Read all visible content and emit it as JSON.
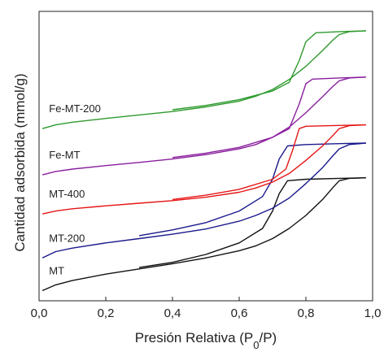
{
  "chart_data": {
    "type": "line",
    "title": "",
    "xlabel": "Presión Relativa (P",
    "xlabel_sub": "0",
    "xlabel_end": "/P)",
    "ylabel": "Cantidad adsorbida (mmol/g)",
    "xlim": [
      0.0,
      1.0
    ],
    "ylim": [
      0,
      100
    ],
    "x_ticks": [
      "0,0",
      "0,2",
      "0,4",
      "0,6",
      "0,8",
      "1,0"
    ],
    "y_ticks_labeled": false,
    "grid": false,
    "legend": "inline labels at left",
    "series": [
      {
        "name": "MT",
        "color": "#111111",
        "adsorption": [
          [
            0.01,
            3.5
          ],
          [
            0.05,
            5.5
          ],
          [
            0.1,
            7.0
          ],
          [
            0.2,
            9.2
          ],
          [
            0.3,
            11.0
          ],
          [
            0.4,
            12.8
          ],
          [
            0.5,
            14.8
          ],
          [
            0.6,
            17.3
          ],
          [
            0.65,
            19.0
          ],
          [
            0.7,
            21.5
          ],
          [
            0.75,
            25.0
          ],
          [
            0.8,
            29.5
          ],
          [
            0.85,
            35.0
          ],
          [
            0.88,
            39.0
          ],
          [
            0.9,
            41.5
          ],
          [
            0.93,
            42.3
          ],
          [
            0.98,
            42.5
          ]
        ],
        "desorption": [
          [
            0.98,
            42.5
          ],
          [
            0.9,
            42.3
          ],
          [
            0.8,
            42.0
          ],
          [
            0.745,
            41.5
          ],
          [
            0.72,
            37.0
          ],
          [
            0.7,
            31.0
          ],
          [
            0.67,
            25.0
          ],
          [
            0.6,
            20.0
          ],
          [
            0.5,
            16.0
          ],
          [
            0.4,
            13.3
          ],
          [
            0.3,
            11.5
          ]
        ]
      },
      {
        "name": "MT-200",
        "color": "#1a1a8c",
        "adsorption": [
          [
            0.01,
            14.8
          ],
          [
            0.05,
            17.0
          ],
          [
            0.1,
            18.2
          ],
          [
            0.2,
            20.0
          ],
          [
            0.3,
            21.5
          ],
          [
            0.4,
            23.0
          ],
          [
            0.5,
            24.8
          ],
          [
            0.6,
            27.5
          ],
          [
            0.65,
            29.5
          ],
          [
            0.7,
            32.0
          ],
          [
            0.75,
            35.5
          ],
          [
            0.8,
            40.5
          ],
          [
            0.85,
            46.0
          ],
          [
            0.88,
            50.0
          ],
          [
            0.9,
            52.5
          ],
          [
            0.93,
            54.0
          ],
          [
            0.98,
            54.5
          ]
        ],
        "desorption": [
          [
            0.98,
            54.5
          ],
          [
            0.9,
            54.3
          ],
          [
            0.8,
            54.0
          ],
          [
            0.745,
            53.5
          ],
          [
            0.72,
            49.0
          ],
          [
            0.7,
            42.0
          ],
          [
            0.67,
            36.0
          ],
          [
            0.6,
            31.0
          ],
          [
            0.5,
            27.0
          ],
          [
            0.4,
            24.5
          ],
          [
            0.3,
            22.5
          ]
        ]
      },
      {
        "name": "MT-400",
        "color": "#e61515",
        "adsorption": [
          [
            0.01,
            30.0
          ],
          [
            0.05,
            31.0
          ],
          [
            0.1,
            31.8
          ],
          [
            0.2,
            32.8
          ],
          [
            0.3,
            33.7
          ],
          [
            0.4,
            34.6
          ],
          [
            0.5,
            35.8
          ],
          [
            0.6,
            37.5
          ],
          [
            0.65,
            39.0
          ],
          [
            0.7,
            41.0
          ],
          [
            0.75,
            44.0
          ],
          [
            0.8,
            48.5
          ],
          [
            0.85,
            53.5
          ],
          [
            0.88,
            57.0
          ],
          [
            0.9,
            59.5
          ],
          [
            0.93,
            60.5
          ],
          [
            0.98,
            60.8
          ]
        ],
        "desorption": [
          [
            0.98,
            60.8
          ],
          [
            0.9,
            60.6
          ],
          [
            0.8,
            60.3
          ],
          [
            0.78,
            59.5
          ],
          [
            0.76,
            52.0
          ],
          [
            0.74,
            45.5
          ],
          [
            0.7,
            42.0
          ],
          [
            0.6,
            38.5
          ],
          [
            0.5,
            36.5
          ],
          [
            0.4,
            35.0
          ]
        ]
      },
      {
        "name": "Fe-MT",
        "color": "#8a1f9e",
        "adsorption": [
          [
            0.01,
            43.5
          ],
          [
            0.05,
            44.7
          ],
          [
            0.1,
            45.5
          ],
          [
            0.2,
            46.7
          ],
          [
            0.3,
            47.8
          ],
          [
            0.4,
            49.0
          ],
          [
            0.5,
            50.5
          ],
          [
            0.6,
            52.5
          ],
          [
            0.65,
            54.0
          ],
          [
            0.7,
            56.5
          ],
          [
            0.75,
            60.0
          ],
          [
            0.8,
            65.0
          ],
          [
            0.85,
            70.5
          ],
          [
            0.88,
            74.0
          ],
          [
            0.9,
            76.0
          ],
          [
            0.93,
            77.0
          ],
          [
            0.98,
            77.3
          ]
        ],
        "desorption": [
          [
            0.98,
            77.3
          ],
          [
            0.9,
            77.0
          ],
          [
            0.82,
            76.6
          ],
          [
            0.8,
            75.0
          ],
          [
            0.78,
            68.0
          ],
          [
            0.75,
            59.5
          ],
          [
            0.7,
            56.5
          ],
          [
            0.6,
            53.0
          ],
          [
            0.5,
            51.0
          ],
          [
            0.4,
            49.5
          ]
        ]
      },
      {
        "name": "Fe-MT-200",
        "color": "#2e9a2e",
        "adsorption": [
          [
            0.01,
            59.5
          ],
          [
            0.05,
            60.8
          ],
          [
            0.1,
            61.7
          ],
          [
            0.2,
            63.0
          ],
          [
            0.3,
            64.2
          ],
          [
            0.4,
            65.4
          ],
          [
            0.5,
            67.0
          ],
          [
            0.6,
            69.0
          ],
          [
            0.65,
            70.7
          ],
          [
            0.7,
            73.0
          ],
          [
            0.75,
            76.5
          ],
          [
            0.8,
            81.0
          ],
          [
            0.85,
            86.5
          ],
          [
            0.88,
            90.0
          ],
          [
            0.9,
            92.0
          ],
          [
            0.93,
            93.0
          ],
          [
            0.98,
            93.3
          ]
        ],
        "desorption": [
          [
            0.98,
            93.3
          ],
          [
            0.9,
            93.0
          ],
          [
            0.83,
            92.6
          ],
          [
            0.8,
            89.5
          ],
          [
            0.78,
            83.0
          ],
          [
            0.75,
            75.5
          ],
          [
            0.7,
            72.5
          ],
          [
            0.6,
            69.5
          ],
          [
            0.5,
            67.5
          ],
          [
            0.4,
            66.0
          ]
        ]
      }
    ]
  }
}
